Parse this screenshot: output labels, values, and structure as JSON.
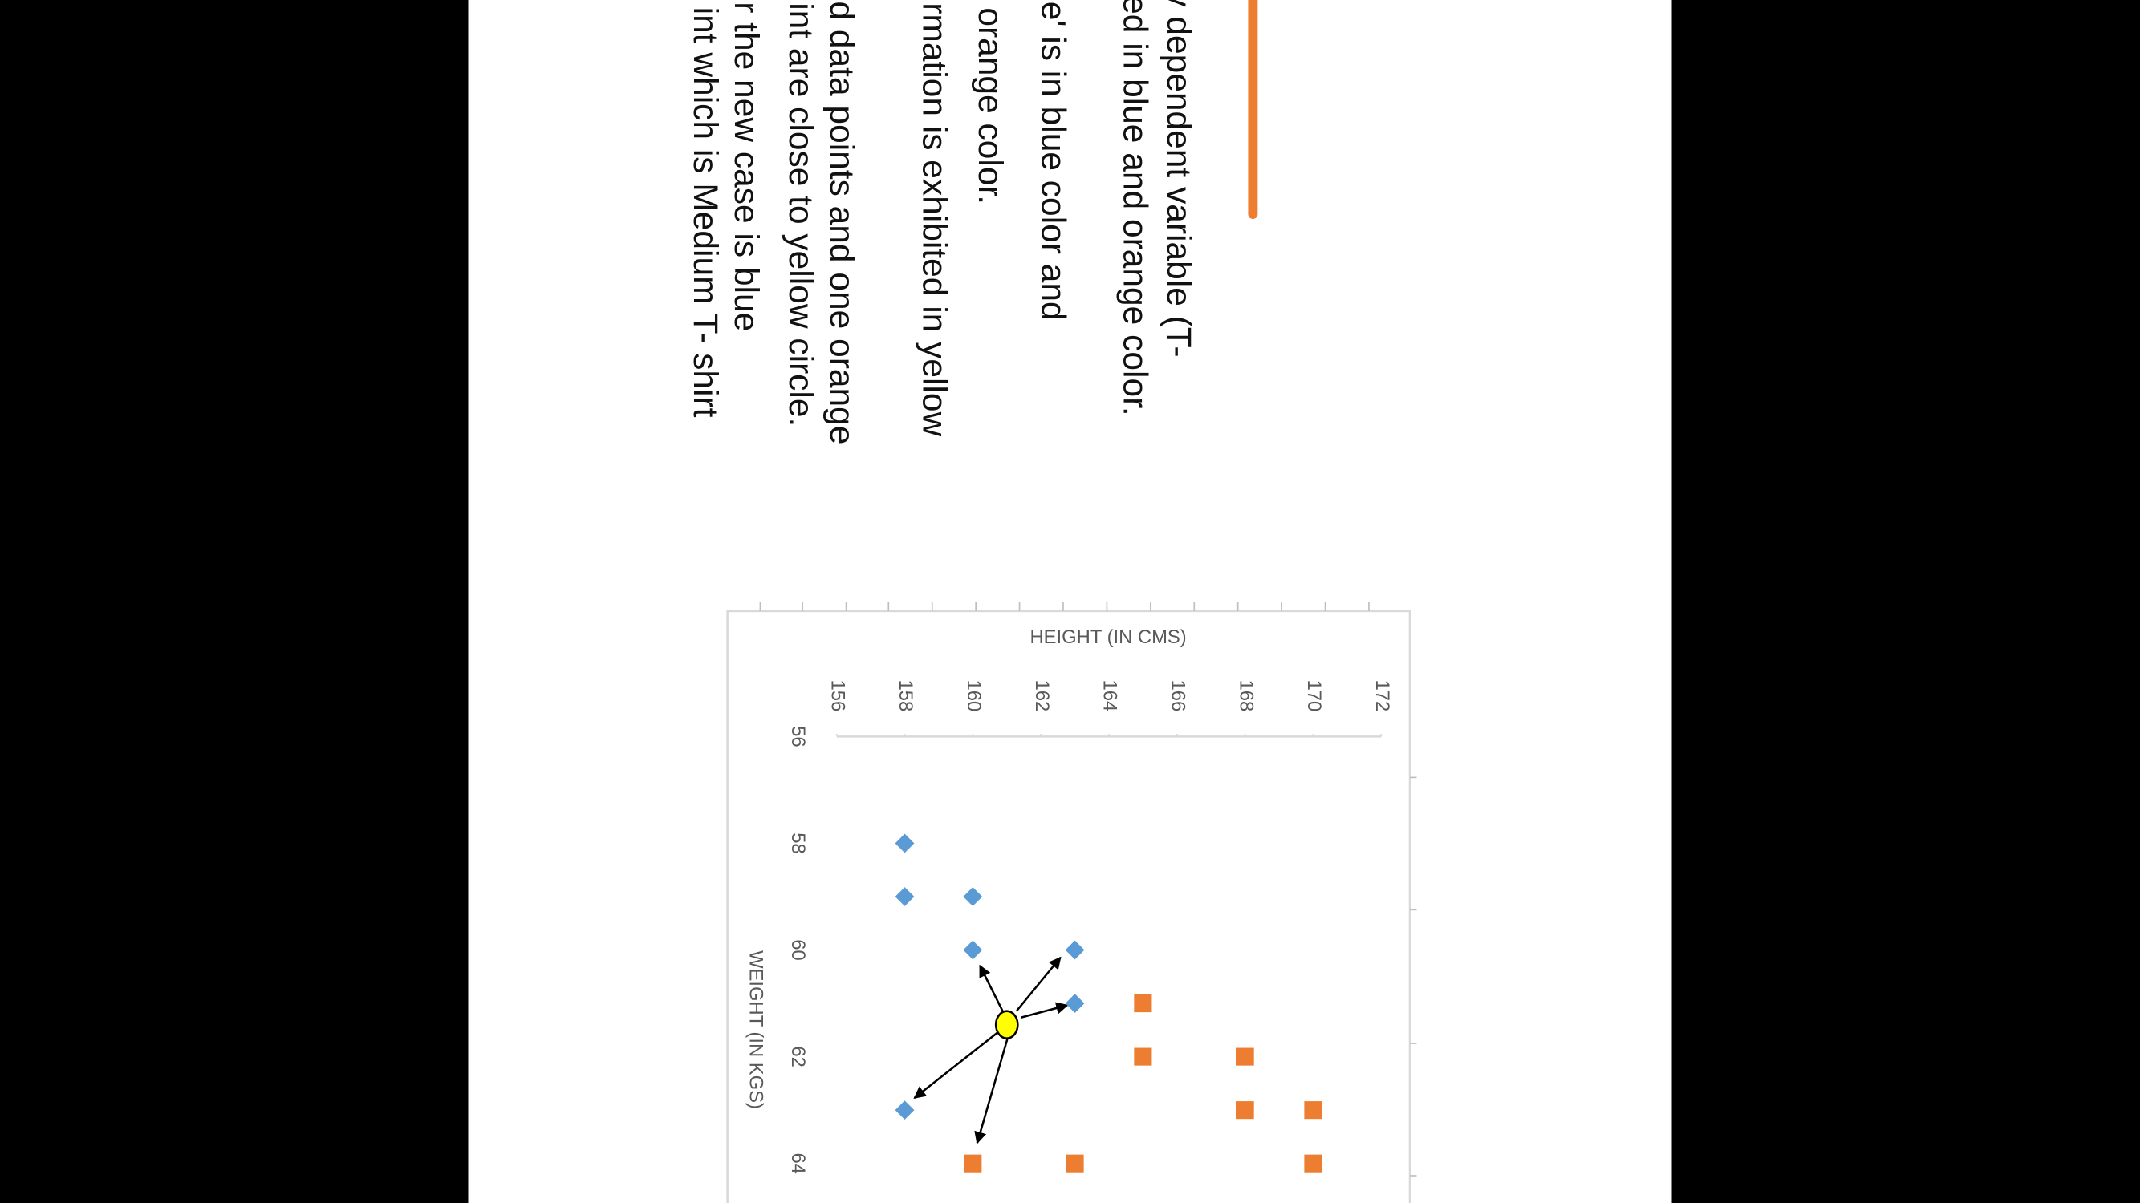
{
  "slide_text": [
    "y dependent variable (T-",
    "ed in blue and  orange color.",
    "e' is in blue color and",
    "n orange color.",
    "rmation is exhibited in yellow",
    "ed data points and one orange",
    "int are close to  yellow circle.",
    "r the new case is blue",
    "int which is Medium T- shirt"
  ],
  "chart_data": {
    "type": "scatter",
    "xlabel": "WEIGHT (IN KGS)",
    "ylabel": "HEIGHT (IN CMS)",
    "xlim": [
      56,
      64
    ],
    "xticks": [
      56,
      58,
      60,
      62,
      64
    ],
    "ylim": [
      156,
      172
    ],
    "yticks": [
      156,
      158,
      160,
      162,
      164,
      166,
      168,
      170,
      172
    ],
    "series": [
      {
        "color": "#5b9bd5",
        "marker": "diamond",
        "x": [
          58,
          59,
          59,
          60,
          60,
          61,
          63
        ],
        "values": [
          158,
          158,
          160,
          160,
          163,
          163,
          158
        ]
      },
      {
        "color": "#ed7d31",
        "marker": "square",
        "x": [
          61,
          62,
          62,
          63,
          63,
          64,
          64,
          64
        ],
        "values": [
          165,
          165,
          168,
          168,
          170,
          160,
          163,
          170
        ]
      },
      {
        "color": "#ffff00",
        "marker": "circle",
        "x": [
          61.4
        ],
        "values": [
          161
        ]
      }
    ]
  }
}
